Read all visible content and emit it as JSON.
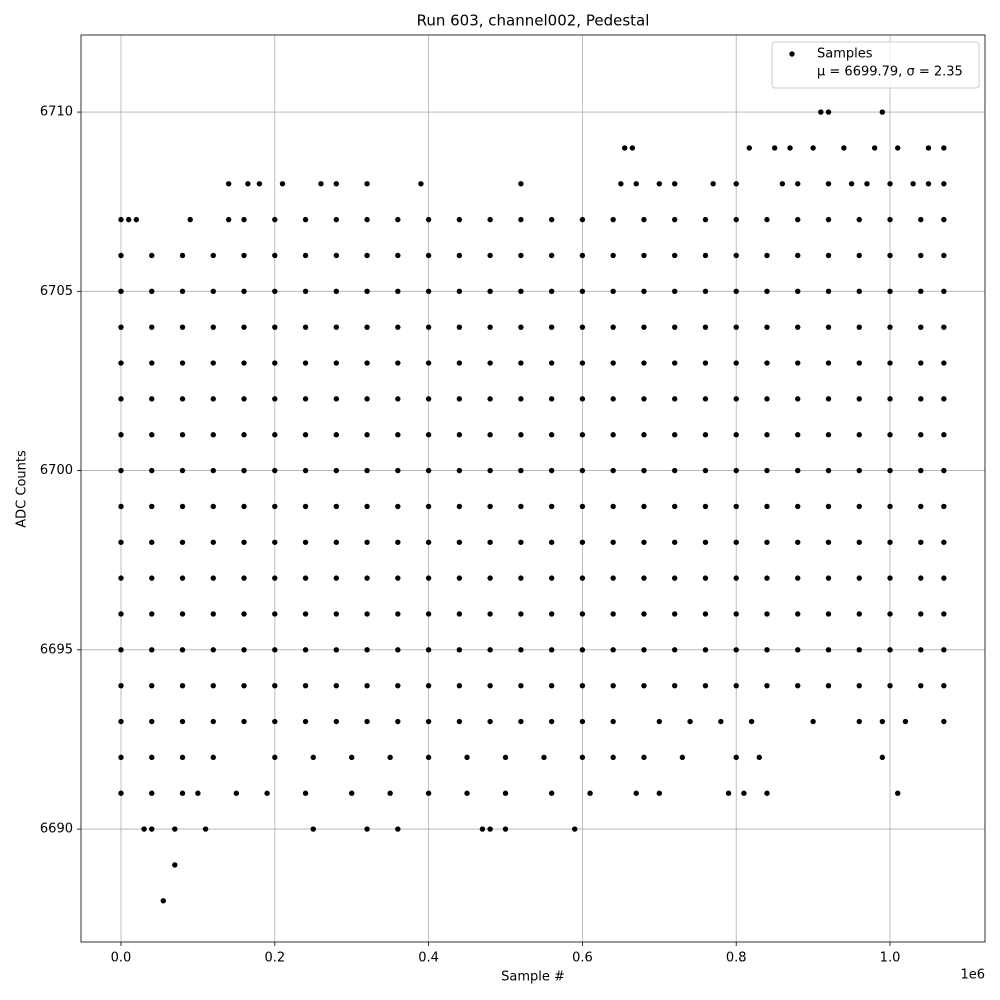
{
  "chart_data": {
    "type": "scatter",
    "title": "Run 603, channel002, Pedestal",
    "xlabel": "Sample #",
    "ylabel": "ADC Counts",
    "x_offset_label": "1e6",
    "xlim": [
      -0.052,
      1.1235
    ],
    "ylim": [
      6686.85,
      6712.15
    ],
    "xticks": [
      {
        "value": 0,
        "label": "0.0"
      },
      0.2,
      0.4,
      0.6,
      0.8,
      {
        "value": 1,
        "label": "1.0"
      }
    ],
    "yticks": [
      6690,
      6695,
      6700,
      6705,
      6710
    ],
    "grid": true,
    "legend": "upper right",
    "legend_text": "μ = 6699.79, σ = 2.35",
    "series": [
      {
        "name": "Samples",
        "color": "#000000",
        "x": [
          0.055,
          0.07,
          0.03,
          0.04,
          0.07,
          0.11,
          0.25,
          0.32,
          0.36,
          0.47,
          0.48,
          0.5,
          0.59,
          0,
          0.04,
          0.08,
          0.1,
          0.15,
          0.19,
          0.24,
          0.3,
          0.35,
          0.4,
          0.45,
          0.5,
          0.56,
          0.61,
          0.67,
          0.7,
          0.79,
          0.81,
          0.84,
          1.01,
          0,
          0.04,
          0.08,
          0.12,
          0.2,
          0.25,
          0.3,
          0.35,
          0.4,
          0.45,
          0.5,
          0.55,
          0.6,
          0.64,
          0.68,
          0.73,
          0.8,
          0.83,
          0.99,
          0,
          0.04,
          0.08,
          0.12,
          0.16,
          0.2,
          0.24,
          0.28,
          0.32,
          0.36,
          0.4,
          0.44,
          0.48,
          0.52,
          0.56,
          0.6,
          0.64,
          0.7,
          0.74,
          0.78,
          0.82,
          0.9,
          0.96,
          0.99,
          1.02,
          1.07,
          0,
          0.04,
          0.08,
          0.12,
          0.16,
          0.2,
          0.24,
          0.28,
          0.32,
          0.36,
          0.4,
          0.44,
          0.48,
          0.52,
          0.56,
          0.6,
          0.64,
          0.68,
          0.72,
          0.76,
          0.8,
          0.84,
          0.88,
          0.92,
          0.96,
          1,
          1.04,
          1.07,
          0,
          0.04,
          0.08,
          0.12,
          0.16,
          0.2,
          0.24,
          0.28,
          0.32,
          0.36,
          0.4,
          0.44,
          0.48,
          0.52,
          0.56,
          0.6,
          0.64,
          0.68,
          0.72,
          0.76,
          0.8,
          0.84,
          0.88,
          0.92,
          0.96,
          1,
          1.04,
          1.07,
          0,
          0.04,
          0.08,
          0.12,
          0.16,
          0.2,
          0.24,
          0.28,
          0.32,
          0.36,
          0.4,
          0.44,
          0.48,
          0.52,
          0.56,
          0.6,
          0.64,
          0.68,
          0.72,
          0.76,
          0.8,
          0.84,
          0.88,
          0.92,
          0.96,
          1,
          1.04,
          1.07,
          0,
          0.04,
          0.08,
          0.12,
          0.16,
          0.2,
          0.24,
          0.28,
          0.32,
          0.36,
          0.4,
          0.44,
          0.48,
          0.52,
          0.56,
          0.6,
          0.64,
          0.68,
          0.72,
          0.76,
          0.8,
          0.84,
          0.88,
          0.92,
          0.96,
          1,
          1.04,
          1.07,
          0,
          0.04,
          0.08,
          0.12,
          0.16,
          0.2,
          0.24,
          0.28,
          0.32,
          0.36,
          0.4,
          0.44,
          0.48,
          0.52,
          0.56,
          0.6,
          0.64,
          0.68,
          0.72,
          0.76,
          0.8,
          0.84,
          0.88,
          0.92,
          0.96,
          1,
          1.04,
          1.07,
          0,
          0.04,
          0.08,
          0.12,
          0.16,
          0.2,
          0.24,
          0.28,
          0.32,
          0.36,
          0.4,
          0.44,
          0.48,
          0.52,
          0.56,
          0.6,
          0.64,
          0.68,
          0.72,
          0.76,
          0.8,
          0.84,
          0.88,
          0.92,
          0.96,
          1,
          1.04,
          1.07,
          0,
          0.04,
          0.08,
          0.12,
          0.16,
          0.2,
          0.24,
          0.28,
          0.32,
          0.36,
          0.4,
          0.44,
          0.48,
          0.52,
          0.56,
          0.6,
          0.64,
          0.68,
          0.72,
          0.76,
          0.8,
          0.84,
          0.88,
          0.92,
          0.96,
          1,
          1.04,
          1.07,
          0,
          0.04,
          0.08,
          0.12,
          0.16,
          0.2,
          0.24,
          0.28,
          0.32,
          0.36,
          0.4,
          0.44,
          0.48,
          0.52,
          0.56,
          0.6,
          0.64,
          0.68,
          0.72,
          0.76,
          0.8,
          0.84,
          0.88,
          0.92,
          0.96,
          1,
          1.04,
          1.07,
          0,
          0.04,
          0.08,
          0.12,
          0.16,
          0.2,
          0.24,
          0.28,
          0.32,
          0.36,
          0.4,
          0.44,
          0.48,
          0.52,
          0.56,
          0.6,
          0.64,
          0.68,
          0.72,
          0.76,
          0.8,
          0.84,
          0.88,
          0.92,
          0.96,
          1,
          1.04,
          1.07,
          0,
          0.04,
          0.08,
          0.12,
          0.16,
          0.2,
          0.24,
          0.28,
          0.32,
          0.36,
          0.4,
          0.44,
          0.48,
          0.52,
          0.56,
          0.6,
          0.64,
          0.68,
          0.72,
          0.76,
          0.8,
          0.84,
          0.88,
          0.92,
          0.96,
          1,
          1.04,
          1.07,
          0,
          0.04,
          0.08,
          0.12,
          0.16,
          0.2,
          0.24,
          0.28,
          0.32,
          0.36,
          0.4,
          0.44,
          0.48,
          0.52,
          0.56,
          0.6,
          0.64,
          0.68,
          0.72,
          0.76,
          0.8,
          0.84,
          0.88,
          0.92,
          0.96,
          1,
          1.04,
          1.07,
          0,
          0.04,
          0.08,
          0.12,
          0.16,
          0.2,
          0.24,
          0.28,
          0.32,
          0.36,
          0.4,
          0.44,
          0.48,
          0.52,
          0.56,
          0.6,
          0.64,
          0.68,
          0.72,
          0.76,
          0.8,
          0.84,
          0.88,
          0.92,
          0.96,
          1,
          1.04,
          1.07,
          0,
          0.04,
          0.08,
          0.12,
          0.16,
          0.2,
          0.24,
          0.28,
          0.32,
          0.36,
          0.4,
          0.44,
          0.48,
          0.52,
          0.56,
          0.6,
          0.64,
          0.68,
          0.72,
          0.76,
          0.8,
          0.84,
          0.88,
          0.92,
          0.96,
          1,
          1.04,
          1.07,
          0,
          0.01,
          0.02,
          0.09,
          0.14,
          0.16,
          0.2,
          0.24,
          0.28,
          0.32,
          0.36,
          0.4,
          0.44,
          0.48,
          0.52,
          0.56,
          0.6,
          0.64,
          0.68,
          0.72,
          0.76,
          0.8,
          0.84,
          0.88,
          0.92,
          0.96,
          1,
          1.04,
          1.07,
          0.14,
          0.165,
          0.18,
          0.21,
          0.26,
          0.28,
          0.32,
          0.39,
          0.52,
          0.65,
          0.67,
          0.7,
          0.72,
          0.77,
          0.8,
          0.86,
          0.88,
          0.92,
          0.95,
          0.97,
          1,
          1.03,
          1.05,
          1.07,
          0.655,
          0.665,
          0.817,
          0.85,
          0.87,
          0.9,
          0.94,
          0.98,
          1.01,
          1.05,
          1.07,
          0.91,
          0.92,
          0.99
        ],
        "y": [
          6688,
          6689,
          6690,
          6690,
          6690,
          6690,
          6690,
          6690,
          6690,
          6690,
          6690,
          6690,
          6690,
          6691,
          6691,
          6691,
          6691,
          6691,
          6691,
          6691,
          6691,
          6691,
          6691,
          6691,
          6691,
          6691,
          6691,
          6691,
          6691,
          6691,
          6691,
          6691,
          6691,
          6692,
          6692,
          6692,
          6692,
          6692,
          6692,
          6692,
          6692,
          6692,
          6692,
          6692,
          6692,
          6692,
          6692,
          6692,
          6692,
          6692,
          6692,
          6692,
          6693,
          6693,
          6693,
          6693,
          6693,
          6693,
          6693,
          6693,
          6693,
          6693,
          6693,
          6693,
          6693,
          6693,
          6693,
          6693,
          6693,
          6693,
          6693,
          6693,
          6693,
          6693,
          6693,
          6693,
          6693,
          6693,
          6694,
          6694,
          6694,
          6694,
          6694,
          6694,
          6694,
          6694,
          6694,
          6694,
          6694,
          6694,
          6694,
          6694,
          6694,
          6694,
          6694,
          6694,
          6694,
          6694,
          6694,
          6694,
          6694,
          6694,
          6694,
          6694,
          6694,
          6694,
          6695,
          6695,
          6695,
          6695,
          6695,
          6695,
          6695,
          6695,
          6695,
          6695,
          6695,
          6695,
          6695,
          6695,
          6695,
          6695,
          6695,
          6695,
          6695,
          6695,
          6695,
          6695,
          6695,
          6695,
          6695,
          6695,
          6695,
          6695,
          6696,
          6696,
          6696,
          6696,
          6696,
          6696,
          6696,
          6696,
          6696,
          6696,
          6696,
          6696,
          6696,
          6696,
          6696,
          6696,
          6696,
          6696,
          6696,
          6696,
          6696,
          6696,
          6696,
          6696,
          6696,
          6696,
          6696,
          6696,
          6697,
          6697,
          6697,
          6697,
          6697,
          6697,
          6697,
          6697,
          6697,
          6697,
          6697,
          6697,
          6697,
          6697,
          6697,
          6697,
          6697,
          6697,
          6697,
          6697,
          6697,
          6697,
          6697,
          6697,
          6697,
          6697,
          6697,
          6697,
          6698,
          6698,
          6698,
          6698,
          6698,
          6698,
          6698,
          6698,
          6698,
          6698,
          6698,
          6698,
          6698,
          6698,
          6698,
          6698,
          6698,
          6698,
          6698,
          6698,
          6698,
          6698,
          6698,
          6698,
          6698,
          6698,
          6698,
          6698,
          6699,
          6699,
          6699,
          6699,
          6699,
          6699,
          6699,
          6699,
          6699,
          6699,
          6699,
          6699,
          6699,
          6699,
          6699,
          6699,
          6699,
          6699,
          6699,
          6699,
          6699,
          6699,
          6699,
          6699,
          6699,
          6699,
          6699,
          6699,
          6700,
          6700,
          6700,
          6700,
          6700,
          6700,
          6700,
          6700,
          6700,
          6700,
          6700,
          6700,
          6700,
          6700,
          6700,
          6700,
          6700,
          6700,
          6700,
          6700,
          6700,
          6700,
          6700,
          6700,
          6700,
          6700,
          6700,
          6700,
          6701,
          6701,
          6701,
          6701,
          6701,
          6701,
          6701,
          6701,
          6701,
          6701,
          6701,
          6701,
          6701,
          6701,
          6701,
          6701,
          6701,
          6701,
          6701,
          6701,
          6701,
          6701,
          6701,
          6701,
          6701,
          6701,
          6701,
          6701,
          6702,
          6702,
          6702,
          6702,
          6702,
          6702,
          6702,
          6702,
          6702,
          6702,
          6702,
          6702,
          6702,
          6702,
          6702,
          6702,
          6702,
          6702,
          6702,
          6702,
          6702,
          6702,
          6702,
          6702,
          6702,
          6702,
          6702,
          6702,
          6703,
          6703,
          6703,
          6703,
          6703,
          6703,
          6703,
          6703,
          6703,
          6703,
          6703,
          6703,
          6703,
          6703,
          6703,
          6703,
          6703,
          6703,
          6703,
          6703,
          6703,
          6703,
          6703,
          6703,
          6703,
          6703,
          6703,
          6703,
          6704,
          6704,
          6704,
          6704,
          6704,
          6704,
          6704,
          6704,
          6704,
          6704,
          6704,
          6704,
          6704,
          6704,
          6704,
          6704,
          6704,
          6704,
          6704,
          6704,
          6704,
          6704,
          6704,
          6704,
          6704,
          6704,
          6704,
          6704,
          6705,
          6705,
          6705,
          6705,
          6705,
          6705,
          6705,
          6705,
          6705,
          6705,
          6705,
          6705,
          6705,
          6705,
          6705,
          6705,
          6705,
          6705,
          6705,
          6705,
          6705,
          6705,
          6705,
          6705,
          6705,
          6705,
          6705,
          6705,
          6706,
          6706,
          6706,
          6706,
          6706,
          6706,
          6706,
          6706,
          6706,
          6706,
          6706,
          6706,
          6706,
          6706,
          6706,
          6706,
          6706,
          6706,
          6706,
          6706,
          6706,
          6706,
          6706,
          6706,
          6706,
          6706,
          6706,
          6706,
          6707,
          6707,
          6707,
          6707,
          6707,
          6707,
          6707,
          6707,
          6707,
          6707,
          6707,
          6707,
          6707,
          6707,
          6707,
          6707,
          6707,
          6707,
          6707,
          6707,
          6707,
          6707,
          6707,
          6707,
          6707,
          6707,
          6707,
          6707,
          6707,
          6708,
          6708,
          6708,
          6708,
          6708,
          6708,
          6708,
          6708,
          6708,
          6708,
          6708,
          6708,
          6708,
          6708,
          6708,
          6708,
          6708,
          6708,
          6708,
          6708,
          6708,
          6708,
          6708,
          6708,
          6709,
          6709,
          6709,
          6709,
          6709,
          6709,
          6709,
          6709,
          6709,
          6709,
          6709,
          6710,
          6710,
          6710
        ]
      }
    ]
  }
}
